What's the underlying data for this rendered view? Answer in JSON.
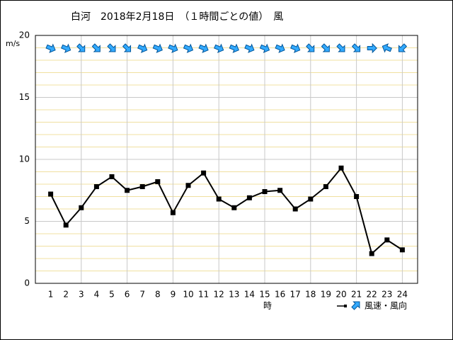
{
  "chart_data": {
    "type": "line",
    "title": "白河　2018年2月18日　（１時間ごとの値）　風",
    "y_label": "m/s",
    "x_label": "時",
    "legend_label": "風速・風向",
    "categories": [
      "1",
      "2",
      "3",
      "4",
      "5",
      "6",
      "7",
      "8",
      "9",
      "10",
      "11",
      "12",
      "13",
      "14",
      "15",
      "16",
      "17",
      "18",
      "19",
      "20",
      "21",
      "22",
      "23",
      "24"
    ],
    "series": [
      {
        "name": "風速",
        "color": "#000000",
        "values": [
          7.2,
          4.7,
          6.1,
          7.8,
          8.6,
          7.5,
          7.8,
          8.2,
          5.7,
          7.9,
          8.9,
          6.8,
          6.1,
          6.9,
          7.4,
          7.5,
          6.0,
          6.8,
          7.8,
          9.3,
          7.0,
          2.4,
          3.5,
          2.7
        ]
      }
    ],
    "directions": [
      292.5,
      292.5,
      315,
      315,
      315,
      315,
      292.5,
      292.5,
      292.5,
      292.5,
      292.5,
      292.5,
      292.5,
      292.5,
      292.5,
      292.5,
      292.5,
      315,
      315,
      315,
      315,
      270,
      112.5,
      45
    ],
    "arrow_color": "#33aaff",
    "ylim": [
      0,
      20
    ],
    "yticks": [
      0,
      5,
      10,
      15,
      20
    ],
    "grid": true
  }
}
